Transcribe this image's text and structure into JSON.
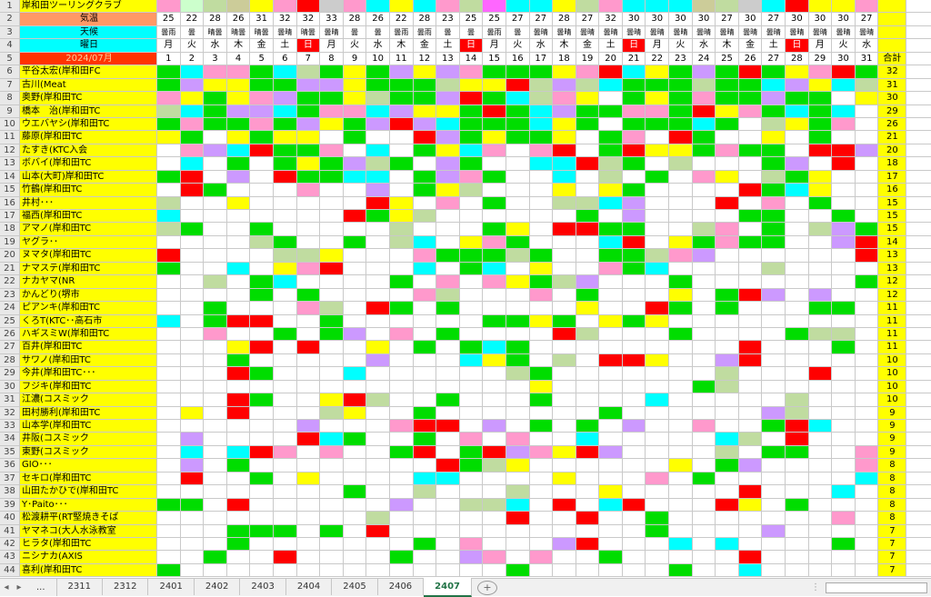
{
  "sheet": {
    "title": "岸和田ツーリングクラブ",
    "labels": {
      "kion": "気温",
      "tenki": "天候",
      "youbi": "曜日",
      "month": "2024/07月",
      "total": "合計"
    },
    "temps": [
      "25",
      "22",
      "28",
      "26",
      "31",
      "32",
      "32",
      "33",
      "28",
      "26",
      "22",
      "28",
      "23",
      "25",
      "25",
      "27",
      "27",
      "28",
      "27",
      "32",
      "30",
      "30",
      "30",
      "30",
      "27",
      "30",
      "27",
      "30",
      "30",
      "30",
      "27"
    ],
    "weather": [
      "曇雨",
      "曇",
      "晴曇",
      "晴曇",
      "晴曇",
      "曇晴",
      "晴曇",
      "曇晴",
      "曇",
      "曇",
      "曇雨",
      "曇雨",
      "曇",
      "曇",
      "曇雨",
      "曇",
      "曇晴",
      "曇晴",
      "曇晴",
      "曇晴",
      "曇晴",
      "曇晴",
      "曇晴",
      "曇晴",
      "曇晴",
      "曇晴",
      "曇晴",
      "曇晴",
      "曇晴",
      "曇晴",
      "曇晴"
    ],
    "weekdays": [
      "月",
      "火",
      "水",
      "木",
      "金",
      "土",
      "日",
      "月",
      "火",
      "水",
      "木",
      "金",
      "土",
      "日",
      "月",
      "火",
      "水",
      "木",
      "金",
      "土",
      "日",
      "月",
      "火",
      "水",
      "木",
      "金",
      "土",
      "日",
      "月",
      "火",
      "水"
    ],
    "members": [
      {
        "name": "平谷太宏(岸和田FC",
        "total": "32"
      },
      {
        "name": "古川(Meat",
        "total": "31"
      },
      {
        "name": "奥野(岸和田TC",
        "total": "30"
      },
      {
        "name": "橋本　治(岸和田TC",
        "total": "29"
      },
      {
        "name": "ウエバヤシ(岸和田TC",
        "total": "26"
      },
      {
        "name": "藤原(岸和田TC",
        "total": "21"
      },
      {
        "name": "たすき(KTC入会",
        "total": "20"
      },
      {
        "name": "ボバイ(岸和田TC",
        "total": "18"
      },
      {
        "name": "山本(大町)岸和田TC",
        "total": "17"
      },
      {
        "name": "竹鶴(岸和田TC",
        "total": "16"
      },
      {
        "name": "井村･･･",
        "total": "15"
      },
      {
        "name": "福西(岸和田TC",
        "total": "15"
      },
      {
        "name": "アマノ(岸和田TC",
        "total": "15"
      },
      {
        "name": "ヤグラ･･",
        "total": "14"
      },
      {
        "name": "ヌマタ(岸和田TC",
        "total": "13"
      },
      {
        "name": "ナマステ(岸和田TC",
        "total": "13"
      },
      {
        "name": "ナカヤマ(NR",
        "total": "12"
      },
      {
        "name": "かんどり(堺市",
        "total": "12"
      },
      {
        "name": "ピアンキ(岸和田TC",
        "total": "11"
      },
      {
        "name": "くろT(KTC･･高石市",
        "total": "11"
      },
      {
        "name": "ハギスミW(岸和田TC",
        "total": "11"
      },
      {
        "name": "百井(岸和田TC",
        "total": "11"
      },
      {
        "name": "サワノ(岸和田TC",
        "total": "10"
      },
      {
        "name": "今井(岸和田TC･･･",
        "total": "10"
      },
      {
        "name": "フジキ(岸和田TC",
        "total": "10"
      },
      {
        "name": "江濃(コスミック",
        "total": "10"
      },
      {
        "name": "田村勝利(岸和田TC",
        "total": "9"
      },
      {
        "name": "山本学(岸和田TC",
        "total": "9"
      },
      {
        "name": "井阪(コスミック",
        "total": "9"
      },
      {
        "name": "東野(コスミック",
        "total": "9"
      },
      {
        "name": "GIO･･･",
        "total": "8"
      },
      {
        "name": "セキロ(岸和田TC",
        "total": "8"
      },
      {
        "name": "山田たかひで(岸和田TC",
        "total": "8"
      },
      {
        "name": "Y･Paito･･･",
        "total": "8"
      },
      {
        "name": "松渡耕平(RT堅焼きそば",
        "total": "8"
      },
      {
        "name": "ヤマネコ(大人水泳教室",
        "total": "7"
      },
      {
        "name": "ヒラタ(岸和田TC",
        "total": "7"
      },
      {
        "name": "ニシナカ(AXIS",
        "total": "7"
      },
      {
        "name": "喜利(岸和田TC",
        "total": "7"
      }
    ],
    "day_colors": [
      "#ff99cc",
      "#ccffcc",
      "#c0dca0",
      "#cccc99",
      "#ffff00",
      "#ff99cc",
      "#ff0000",
      "#cccccc",
      "#ff99cc",
      "#00ffff",
      "#ffff00",
      "#00ffff",
      "#ff99cc",
      "#c0dca0",
      "#ff66ff",
      "#00ffff",
      "#00ffff",
      "#ffff00",
      "#c0dca0",
      "#ff99cc",
      "#00ffff",
      "#00ffff",
      "#00ffff",
      "#cccc99",
      "#c0dca0",
      "#cccccc",
      "#00ffff",
      "#ff0000",
      "#ffff00",
      "#ffff00",
      "#ff99cc"
    ]
  },
  "tabs": [
    "2311",
    "2312",
    "2401",
    "2402",
    "2403",
    "2404",
    "2405",
    "2406",
    "2407"
  ],
  "active_tab": "2407",
  "colors": {
    "header_cyan": "#00ffff",
    "name_yellow": "#ffff00",
    "attendance_green": "#00dd00",
    "total_yellow": "#ffff00",
    "tab_green": "#217346"
  }
}
